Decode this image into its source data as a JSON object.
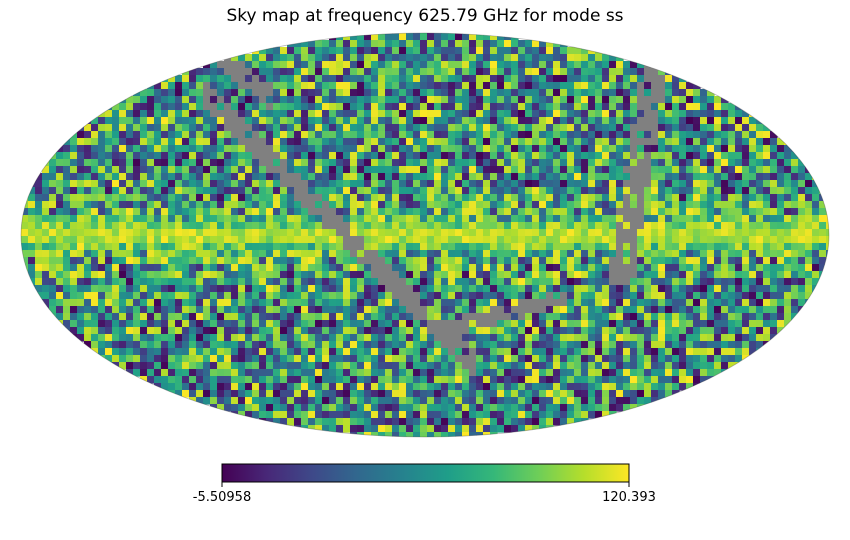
{
  "chart_data": {
    "type": "heatmap",
    "projection": "mollweide",
    "title": "Sky map at frequency 625.79 GHz for mode ss",
    "colormap": "viridis",
    "colorbar": {
      "orientation": "horizontal",
      "min": -5.50958,
      "max": 120.393,
      "min_label": "-5.50958",
      "max_label": "120.393"
    },
    "masked_color": "#808080",
    "features": {
      "galactic_plane_band": "bright band along the equator, values near max",
      "masked_scan_stripes": "grey unobserved stripes (no data)"
    }
  },
  "colors": {
    "viridis_stops": [
      "#440154",
      "#482878",
      "#3e4989",
      "#31688e",
      "#26828e",
      "#1f9e89",
      "#35b779",
      "#6ece58",
      "#b5de2b",
      "#fde725"
    ],
    "masked": "#808080"
  }
}
